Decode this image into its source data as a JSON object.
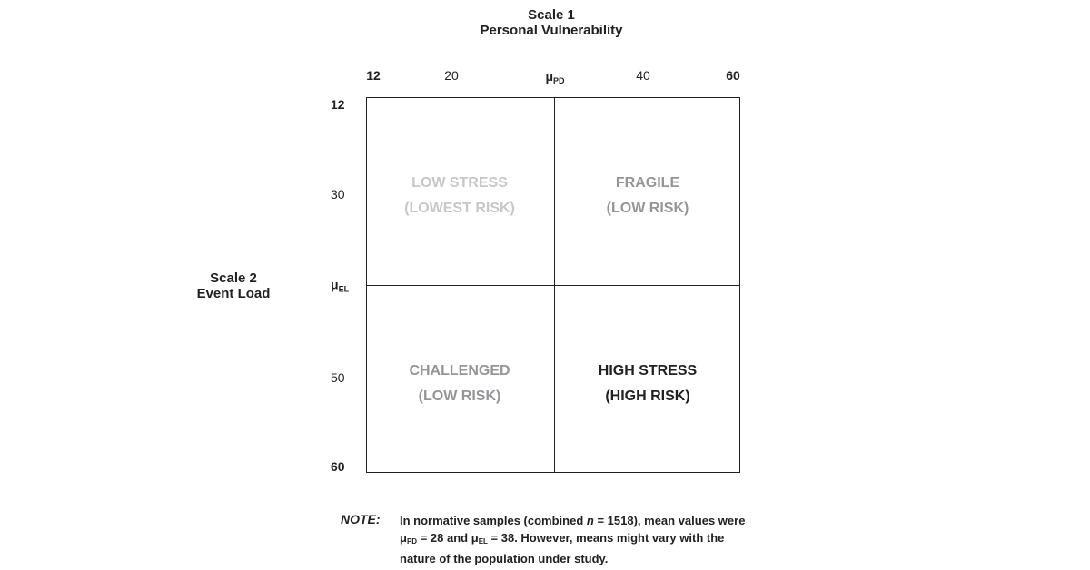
{
  "scale1": {
    "line1": "Scale 1",
    "line2": "Personal Vulnerability"
  },
  "scale2": {
    "line1": "Scale 2",
    "line2": "Event Load"
  },
  "x_axis": {
    "ticks": [
      {
        "label": "12",
        "bold": true
      },
      {
        "label": "20",
        "bold": false
      },
      {
        "symbol": "μ",
        "sub": "PD",
        "bold": true
      },
      {
        "label": "40",
        "bold": false
      },
      {
        "label": "60",
        "bold": true
      }
    ]
  },
  "y_axis": {
    "ticks": [
      {
        "label": "12",
        "bold": true
      },
      {
        "label": "30",
        "bold": false
      },
      {
        "symbol": "μ",
        "sub": "EL",
        "bold": true
      },
      {
        "label": "50",
        "bold": false
      },
      {
        "label": "60",
        "bold": true
      }
    ]
  },
  "quadrants": {
    "top_left": {
      "title": "LOW STRESS",
      "subtitle": "(LOWEST RISK)",
      "color": "#c6c7c9"
    },
    "top_right": {
      "title": "FRAGILE",
      "subtitle": "(LOW RISK)",
      "color": "#939598"
    },
    "bottom_left": {
      "title": "CHALLENGED",
      "subtitle": "(LOW RISK)",
      "color": "#939598"
    },
    "bottom_right": {
      "title": "HIGH STRESS",
      "subtitle": "(HIGH RISK)",
      "color": "#231f20"
    }
  },
  "note": {
    "label": "NOTE:",
    "t1": "In normative samples (combined ",
    "n_symbol": "n",
    "t2": " = 1518), mean values were ",
    "mu": "μ",
    "pd": "PD",
    "t3": " = 28 and ",
    "el": "EL",
    "t4": " = 38. However, means might vary with the nature of the population under study."
  }
}
